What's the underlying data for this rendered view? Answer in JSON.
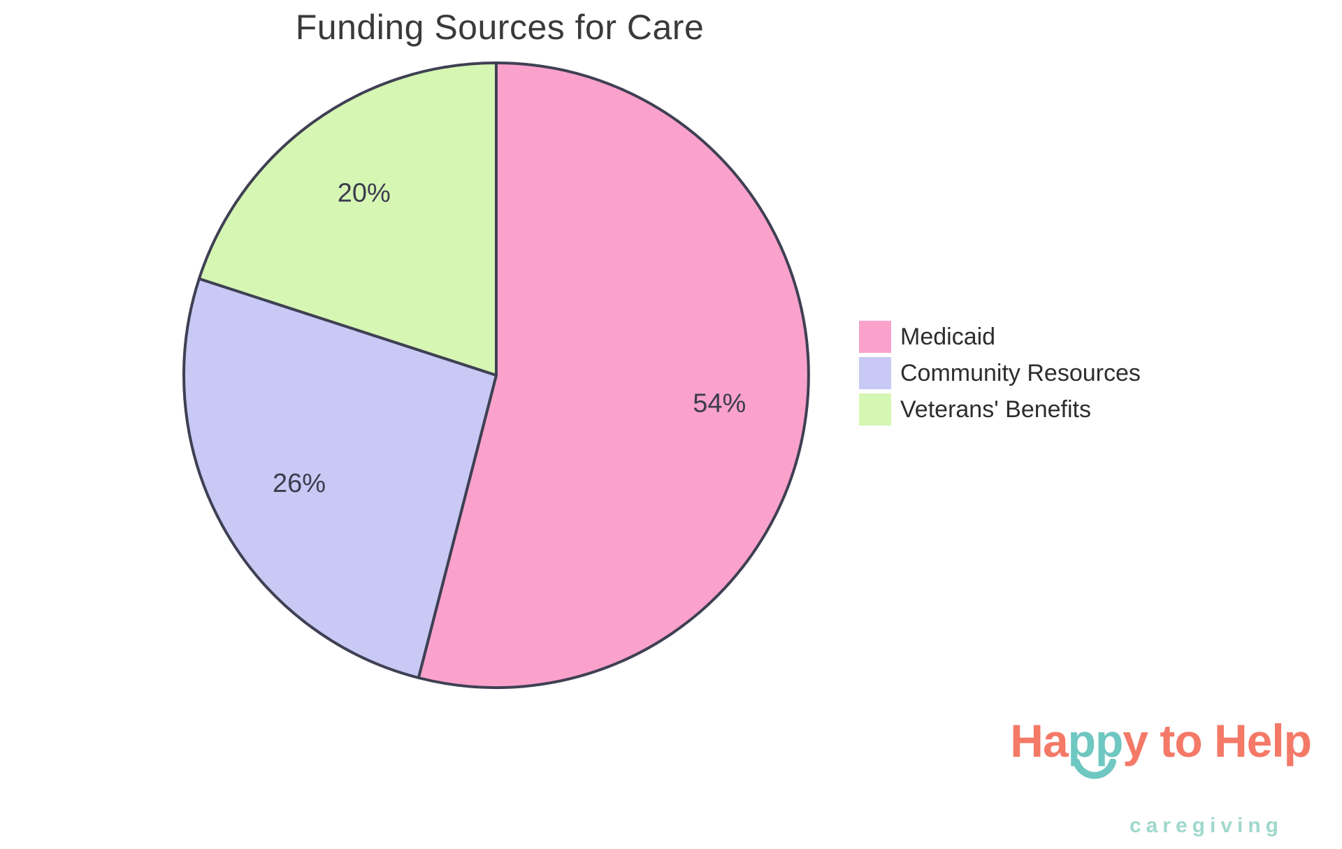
{
  "chart_data": {
    "type": "pie",
    "title": "Funding Sources for Care",
    "categories": [
      "Medicaid",
      "Community Resources",
      "Veterans' Benefits"
    ],
    "values": [
      54,
      26,
      20
    ],
    "slices": [
      {
        "label": "Medicaid",
        "value": 54,
        "percent_label": "54%",
        "color": "#FAA2CC"
      },
      {
        "label": "Community Resources",
        "value": 26,
        "percent_label": "26%",
        "color": "#C8C9F5"
      },
      {
        "label": "Veterans' Benefits",
        "value": 20,
        "percent_label": "20%",
        "color": "#D6F6B3"
      }
    ],
    "start_angle": "12-oclock",
    "direction": "clockwise",
    "outline_color": "#3F4053",
    "percent_label_color": "#3C3C4E",
    "title_color": "#3A3A3A",
    "legend": {
      "position": "right",
      "text_color": "#2D2D2D"
    }
  },
  "logo": {
    "segments": [
      {
        "text": "Ha",
        "color": "#F47967"
      },
      {
        "text": "pp",
        "color": "#6FC7C1"
      },
      {
        "text": "y to Help",
        "color": "#F47967"
      }
    ],
    "tagline": "caregiving",
    "tagline_color": "#A0D8CD",
    "smile_color": "#6FC7C1"
  }
}
